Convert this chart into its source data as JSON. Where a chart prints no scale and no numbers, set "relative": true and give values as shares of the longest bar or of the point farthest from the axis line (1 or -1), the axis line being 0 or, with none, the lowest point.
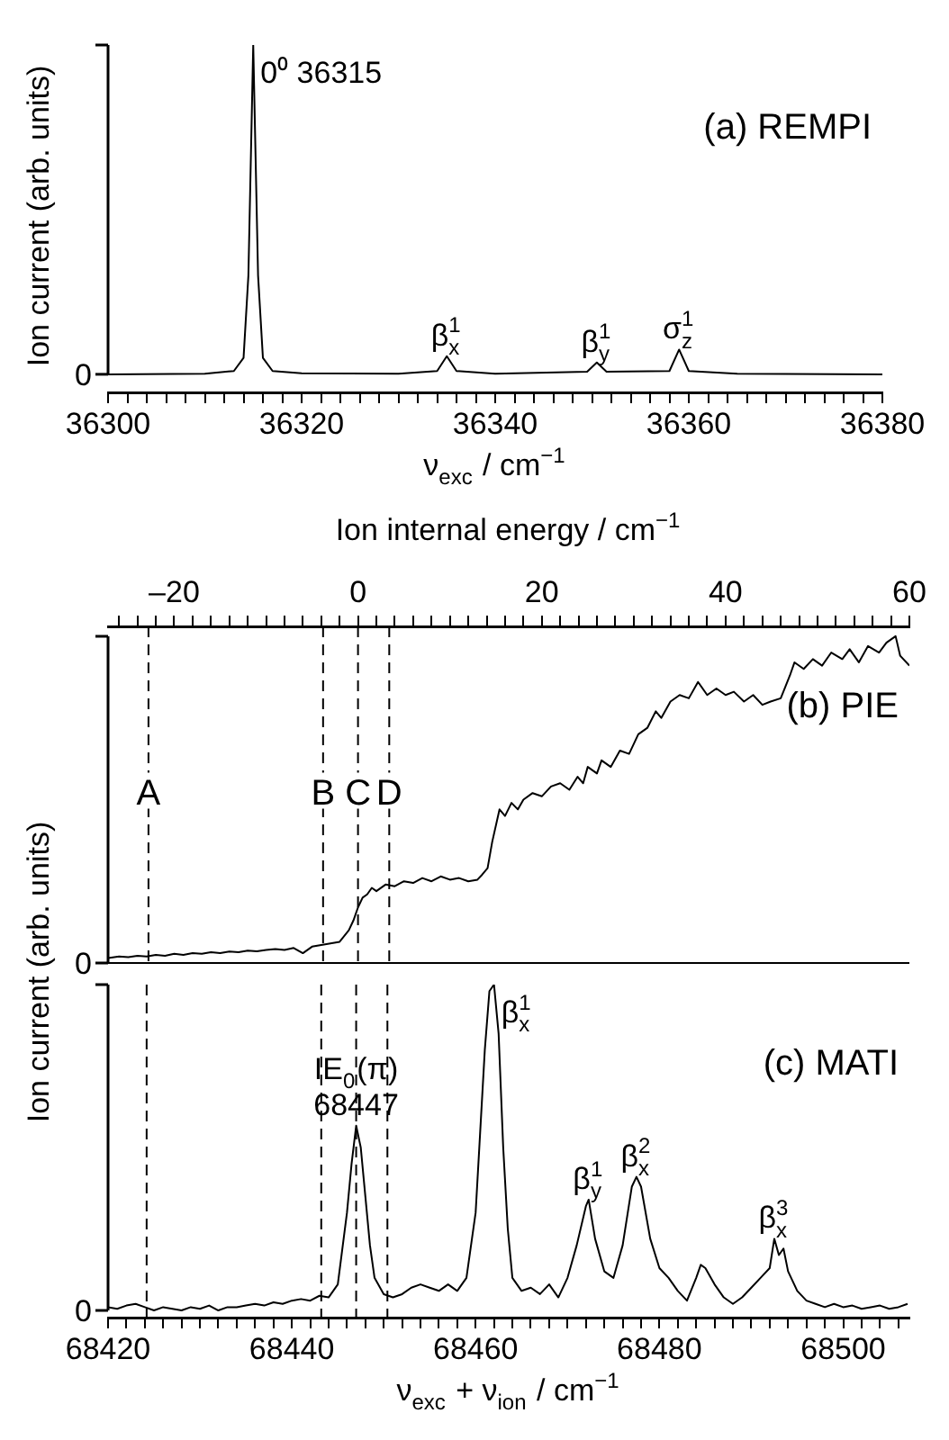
{
  "chart_data": [
    {
      "type": "line",
      "xlabel": "ν$_{exc}$ / cm$^{−1}$",
      "ylabel": "Ion current (arb. units)",
      "relative": true,
      "marker": "none",
      "line_style": "solid",
      "xlim": [
        36300,
        36380
      ],
      "xticks": [
        36300,
        {
          "value": 36302,
          "label": null
        },
        {
          "value": 36304,
          "label": null
        },
        {
          "value": 36306,
          "label": null
        },
        {
          "value": 36308,
          "label": null
        },
        {
          "value": 36310,
          "label": null
        },
        {
          "value": 36312,
          "label": null
        },
        {
          "value": 36314,
          "label": null
        },
        {
          "value": 36316,
          "label": null
        },
        {
          "value": 36318,
          "label": null
        },
        36320,
        {
          "value": 36322,
          "label": null
        },
        {
          "value": 36324,
          "label": null
        },
        {
          "value": 36326,
          "label": null
        },
        {
          "value": 36328,
          "label": null
        },
        {
          "value": 36330,
          "label": null
        },
        {
          "value": 36332,
          "label": null
        },
        {
          "value": 36334,
          "label": null
        },
        {
          "value": 36336,
          "label": null
        },
        {
          "value": 36338,
          "label": null
        },
        36340,
        {
          "value": 36342,
          "label": null
        },
        {
          "value": 36344,
          "label": null
        },
        {
          "value": 36346,
          "label": null
        },
        {
          "value": 36348,
          "label": null
        },
        {
          "value": 36350,
          "label": null
        },
        {
          "value": 36352,
          "label": null
        },
        {
          "value": 36354,
          "label": null
        },
        {
          "value": 36356,
          "label": null
        },
        {
          "value": 36358,
          "label": null
        },
        36360,
        {
          "value": 36362,
          "label": null
        },
        {
          "value": 36364,
          "label": null
        },
        {
          "value": 36366,
          "label": null
        },
        {
          "value": 36368,
          "label": null
        },
        {
          "value": 36370,
          "label": null
        },
        {
          "value": 36372,
          "label": null
        },
        {
          "value": 36374,
          "label": null
        },
        {
          "value": 36376,
          "label": null
        },
        {
          "value": 36378,
          "label": null
        },
        36380
      ],
      "x": [
        36300,
        36310,
        36313,
        36314,
        36314.5,
        36315,
        36315.5,
        36316,
        36317,
        36320,
        36330,
        36334,
        36335,
        36336,
        36340,
        36349.5,
        36350.5,
        36351.5,
        36358,
        36359,
        36360,
        36365,
        36380
      ],
      "series": [
        {
          "color": "#000000",
          "values": [
            0,
            0.002,
            0.01,
            0.05,
            0.3,
            1,
            0.3,
            0.05,
            0.01,
            0.003,
            0.002,
            0.01,
            0.055,
            0.01,
            0.002,
            0.008,
            0.036,
            0.008,
            0.01,
            0.075,
            0.01,
            0.002,
            0
          ]
        }
      ],
      "annotations": [
        "(a) REMPI",
        "0",
        {
          "text": "0⁰ 36315",
          "x": 36315,
          "y": 1
        },
        {
          "text": "β$^{1}$$_{x}$",
          "x": 36335,
          "y": 0.055
        },
        {
          "text": "β$^{1}$$_{y}$",
          "x": 36350.5,
          "y": 0.036
        },
        {
          "text": "σ$^{1}$$_{z}$",
          "x": 36359,
          "y": 0.075
        }
      ]
    },
    {
      "type": "line",
      "xlabel": "Ion internal energy / cm$^{−1}$",
      "ylabel": "Ion current (arb. units)",
      "relative": true,
      "marker": "none",
      "line_style": "solid",
      "xlim": [
        -27.2,
        60
      ],
      "xticks": [
        {
          "value": -26,
          "label": null
        },
        {
          "value": -24,
          "label": null
        },
        {
          "value": -22,
          "label": null
        },
        {
          "value": -20,
          "label": "–20"
        },
        {
          "value": -18,
          "label": null
        },
        {
          "value": -16,
          "label": null
        },
        {
          "value": -14,
          "label": null
        },
        {
          "value": -12,
          "label": null
        },
        {
          "value": -10,
          "label": null
        },
        {
          "value": -8,
          "label": null
        },
        {
          "value": -6,
          "label": null
        },
        {
          "value": -4,
          "label": null
        },
        {
          "value": -2,
          "label": null
        },
        0,
        {
          "value": 2,
          "label": null
        },
        {
          "value": 4,
          "label": null
        },
        {
          "value": 6,
          "label": null
        },
        {
          "value": 8,
          "label": null
        },
        {
          "value": 10,
          "label": null
        },
        {
          "value": 12,
          "label": null
        },
        {
          "value": 14,
          "label": null
        },
        {
          "value": 16,
          "label": null
        },
        {
          "value": 18,
          "label": null
        },
        20,
        {
          "value": 22,
          "label": null
        },
        {
          "value": 24,
          "label": null
        },
        {
          "value": 26,
          "label": null
        },
        {
          "value": 28,
          "label": null
        },
        {
          "value": 30,
          "label": null
        },
        {
          "value": 32,
          "label": null
        },
        {
          "value": 34,
          "label": null
        },
        {
          "value": 36,
          "label": null
        },
        {
          "value": 38,
          "label": null
        },
        40,
        {
          "value": 42,
          "label": null
        },
        {
          "value": 44,
          "label": null
        },
        {
          "value": 46,
          "label": null
        },
        {
          "value": 48,
          "label": null
        },
        {
          "value": 50,
          "label": null
        },
        {
          "value": 52,
          "label": null
        },
        {
          "value": 54,
          "label": null
        },
        {
          "value": 56,
          "label": null
        },
        {
          "value": 58,
          "label": null
        },
        60
      ],
      "x": [
        -27.2,
        -26,
        -25,
        -24,
        -23,
        -22,
        -21,
        -20,
        -19,
        -18,
        -17,
        -16,
        -15,
        -14,
        -13,
        -12,
        -11,
        -10,
        -9,
        -8,
        -7,
        -6,
        -5,
        -4,
        -3,
        -2,
        -1,
        -0.5,
        0,
        0.5,
        1,
        1.5,
        2,
        3,
        4,
        5,
        6,
        7,
        8,
        9,
        10,
        11,
        12,
        13,
        13.5,
        14.1,
        14.6,
        15.4,
        16,
        16.7,
        17.4,
        18,
        19,
        20,
        21,
        22,
        23,
        23.9,
        24.5,
        25,
        26,
        26.5,
        27.5,
        28.5,
        29.5,
        30.5,
        31.5,
        32.4,
        33,
        34,
        35,
        36,
        37,
        38,
        39,
        40,
        40.9,
        42,
        43,
        44,
        44.9,
        46,
        47,
        47.5,
        48.5,
        49.5,
        50.5,
        51.5,
        52.7,
        53.5,
        54.5,
        55.5,
        56.7,
        57.5,
        58.5,
        59,
        60
      ],
      "series": [
        {
          "color": "#000000",
          "values": [
            0.015,
            0.02,
            0.018,
            0.022,
            0.02,
            0.025,
            0.022,
            0.028,
            0.025,
            0.03,
            0.028,
            0.033,
            0.03,
            0.035,
            0.033,
            0.038,
            0.036,
            0.04,
            0.043,
            0.04,
            0.046,
            0.03,
            0.05,
            0.055,
            0.06,
            0.065,
            0.1,
            0.13,
            0.17,
            0.2,
            0.21,
            0.23,
            0.22,
            0.24,
            0.235,
            0.25,
            0.245,
            0.26,
            0.25,
            0.265,
            0.255,
            0.26,
            0.25,
            0.255,
            0.27,
            0.29,
            0.37,
            0.47,
            0.45,
            0.49,
            0.47,
            0.5,
            0.52,
            0.51,
            0.54,
            0.55,
            0.53,
            0.57,
            0.55,
            0.6,
            0.58,
            0.62,
            0.6,
            0.65,
            0.64,
            0.7,
            0.72,
            0.77,
            0.75,
            0.8,
            0.82,
            0.81,
            0.86,
            0.82,
            0.84,
            0.82,
            0.83,
            0.8,
            0.82,
            0.79,
            0.8,
            0.81,
            0.88,
            0.92,
            0.9,
            0.93,
            0.91,
            0.95,
            0.93,
            0.96,
            0.92,
            0.97,
            0.95,
            0.98,
            1,
            0.94,
            0.91
          ]
        }
      ],
      "ref_lines": [
        {
          "axis": "x",
          "value": -22.8,
          "label": "A",
          "line_style": "dashed"
        },
        {
          "axis": "x",
          "value": -3.8,
          "label": "B",
          "line_style": "dashed"
        },
        {
          "axis": "x",
          "value": 0,
          "label": "C",
          "line_style": "dashed"
        },
        {
          "axis": "x",
          "value": 3.4,
          "label": "D",
          "line_style": "dashed"
        }
      ],
      "annotations": [
        "(b) PIE",
        "0"
      ]
    },
    {
      "type": "line",
      "xlabel": "ν$_{exc}$ + ν$_{ion}$ / cm$^{−1}$",
      "relative": true,
      "marker": "none",
      "line_style": "solid",
      "xlim": [
        68420,
        68507.2
      ],
      "xticks": [
        68420,
        {
          "value": 68422,
          "label": null
        },
        {
          "value": 68424,
          "label": null
        },
        {
          "value": 68426,
          "label": null
        },
        {
          "value": 68428,
          "label": null
        },
        {
          "value": 68430,
          "label": null
        },
        {
          "value": 68432,
          "label": null
        },
        {
          "value": 68434,
          "label": null
        },
        {
          "value": 68436,
          "label": null
        },
        {
          "value": 68438,
          "label": null
        },
        68440,
        {
          "value": 68442,
          "label": null
        },
        {
          "value": 68444,
          "label": null
        },
        {
          "value": 68446,
          "label": null
        },
        {
          "value": 68448,
          "label": null
        },
        {
          "value": 68450,
          "label": null
        },
        {
          "value": 68452,
          "label": null
        },
        {
          "value": 68454,
          "label": null
        },
        {
          "value": 68456,
          "label": null
        },
        {
          "value": 68458,
          "label": null
        },
        68460,
        {
          "value": 68462,
          "label": null
        },
        {
          "value": 68464,
          "label": null
        },
        {
          "value": 68466,
          "label": null
        },
        {
          "value": 68468,
          "label": null
        },
        {
          "value": 68470,
          "label": null
        },
        {
          "value": 68472,
          "label": null
        },
        {
          "value": 68474,
          "label": null
        },
        {
          "value": 68476,
          "label": null
        },
        {
          "value": 68478,
          "label": null
        },
        68480,
        {
          "value": 68482,
          "label": null
        },
        {
          "value": 68484,
          "label": null
        },
        {
          "value": 68486,
          "label": null
        },
        {
          "value": 68488,
          "label": null
        },
        {
          "value": 68490,
          "label": null
        },
        {
          "value": 68492,
          "label": null
        },
        {
          "value": 68494,
          "label": null
        },
        {
          "value": 68496,
          "label": null
        },
        {
          "value": 68498,
          "label": null
        },
        68500,
        {
          "value": 68502,
          "label": null
        },
        {
          "value": 68504,
          "label": null
        },
        {
          "value": 68506,
          "label": null
        }
      ],
      "x": [
        68420,
        68421,
        68422,
        68423,
        68424,
        68425,
        68426,
        68427,
        68428,
        68429,
        68430,
        68431,
        68432,
        68433,
        68434,
        68435,
        68436,
        68437,
        68438,
        68439,
        68440,
        68441,
        68442,
        68443,
        68444,
        68445,
        68446,
        68446.5,
        68447,
        68447.5,
        68448,
        68448.5,
        68449,
        68450,
        68451,
        68452,
        68453,
        68454,
        68455,
        68456,
        68457,
        68458,
        68459,
        68460,
        68460.5,
        68461,
        68461.5,
        68462,
        68462.5,
        68463,
        68463.5,
        68464,
        68465,
        68466,
        68467,
        68468,
        68469,
        68470,
        68471,
        68472,
        68472.3,
        68473,
        68474,
        68475,
        68476,
        68477,
        68477.5,
        68478,
        68479,
        68480,
        68481,
        68482,
        68483,
        68484,
        68484.5,
        68485,
        68486,
        68487,
        68488,
        68489,
        68490,
        68491,
        68492,
        68492.5,
        68493,
        68493.5,
        68494,
        68495,
        68496,
        68497,
        68498,
        68499,
        68500,
        68501,
        68502,
        68503,
        68504,
        68505,
        68506,
        68507
      ],
      "series": [
        {
          "color": "#000000",
          "values": [
            0.01,
            0.005,
            0.015,
            0.02,
            0.01,
            0,
            0.01,
            0.005,
            0,
            0.01,
            0.005,
            0.015,
            0,
            0.01,
            0.01,
            0.015,
            0.02,
            0.015,
            0.025,
            0.02,
            0.03,
            0.035,
            0.03,
            0.045,
            0.04,
            0.08,
            0.3,
            0.45,
            0.567,
            0.5,
            0.35,
            0.2,
            0.1,
            0.05,
            0.04,
            0.05,
            0.07,
            0.08,
            0.07,
            0.06,
            0.08,
            0.06,
            0.1,
            0.3,
            0.55,
            0.8,
            0.98,
            1,
            0.85,
            0.5,
            0.25,
            0.1,
            0.06,
            0.07,
            0.05,
            0.08,
            0.04,
            0.1,
            0.2,
            0.32,
            0.34,
            0.22,
            0.12,
            0.1,
            0.2,
            0.38,
            0.41,
            0.38,
            0.22,
            0.13,
            0.1,
            0.06,
            0.03,
            0.1,
            0.14,
            0.13,
            0.08,
            0.04,
            0.02,
            0.04,
            0.07,
            0.1,
            0.13,
            0.22,
            0.17,
            0.19,
            0.12,
            0.06,
            0.03,
            0.02,
            0.01,
            0.02,
            0.01,
            0.015,
            0.005,
            0.01,
            0.015,
            0.005,
            0.01,
            0.02
          ]
        }
      ],
      "ref_lines": [
        {
          "axis": "x",
          "value": 68424.2,
          "line_style": "dashed"
        },
        {
          "axis": "x",
          "value": 68443.2,
          "line_style": "dashed"
        },
        {
          "axis": "x",
          "value": 68447,
          "line_style": "dashed"
        },
        {
          "axis": "x",
          "value": 68450.4,
          "line_style": "dashed"
        }
      ],
      "annotations": [
        "(c) MATI",
        "0",
        {
          "text": "IE$_{0}$(π)\n68447",
          "x": 68447,
          "y": 0.567
        },
        {
          "text": "β$^{1}$$_{x}$",
          "x": 68462,
          "y": 1
        },
        {
          "text": "β$^{1}$$_{y}$",
          "x": 68472.3,
          "y": 0.34
        },
        {
          "text": "β$^{2}$$_{x}$",
          "x": 68477.5,
          "y": 0.41
        },
        {
          "text": "β$^{3}$$_{x}$",
          "x": 68492.5,
          "y": 0.22
        }
      ]
    }
  ]
}
